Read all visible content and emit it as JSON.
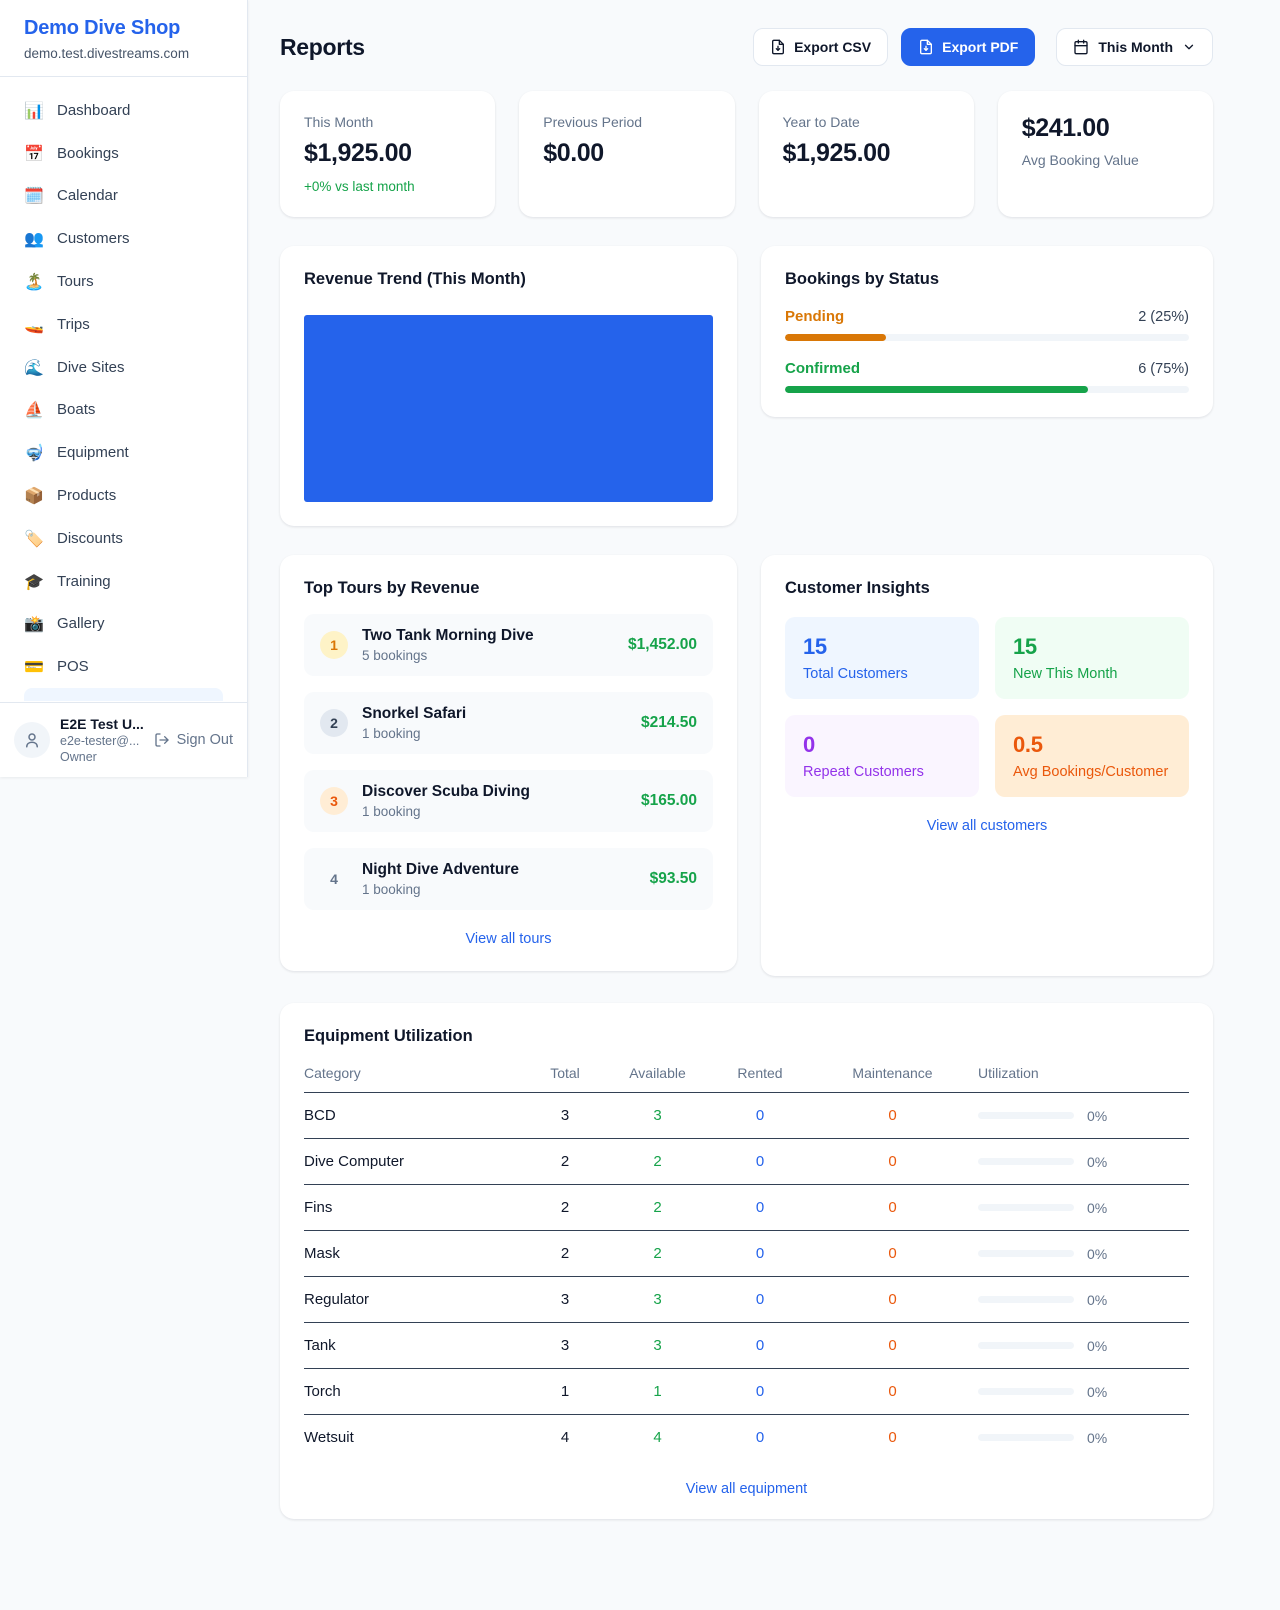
{
  "colors": {
    "accent_blue": "#2563eb",
    "success_green": "#16a34a",
    "pending_orange": "#d97706",
    "maintenance_orange": "#ea580c",
    "purple": "#9333ea",
    "page_bg": "#f8fafc",
    "chart_fill": "#2563eb"
  },
  "sidebar": {
    "brand": "Demo Dive Shop",
    "subdomain": "demo.test.divestreams.com",
    "items": [
      {
        "icon": "📊",
        "label": "Dashboard"
      },
      {
        "icon": "📅",
        "label": "Bookings"
      },
      {
        "icon": "🗓️",
        "label": "Calendar"
      },
      {
        "icon": "👥",
        "label": "Customers"
      },
      {
        "icon": "🏝️",
        "label": "Tours"
      },
      {
        "icon": "🚤",
        "label": "Trips"
      },
      {
        "icon": "🌊",
        "label": "Dive Sites"
      },
      {
        "icon": "⛵",
        "label": "Boats"
      },
      {
        "icon": "🤿",
        "label": "Equipment"
      },
      {
        "icon": "📦",
        "label": "Products"
      },
      {
        "icon": "🏷️",
        "label": "Discounts"
      },
      {
        "icon": "🎓",
        "label": "Training"
      },
      {
        "icon": "📸",
        "label": "Gallery"
      },
      {
        "icon": "💳",
        "label": "POS"
      }
    ],
    "user": {
      "name": "E2E Test U...",
      "email": "e2e-tester@...",
      "role": "Owner",
      "signout_label": "Sign Out"
    }
  },
  "header": {
    "title": "Reports",
    "export_csv_label": "Export CSV",
    "export_pdf_label": "Export PDF",
    "period_label": "This Month"
  },
  "stats": [
    {
      "label": "This Month",
      "value": "$1,925.00",
      "delta": "+0% vs last month"
    },
    {
      "label": "Previous Period",
      "value": "$0.00"
    },
    {
      "label": "Year to Date",
      "value": "$1,925.00"
    },
    {
      "label": "Avg Booking Value",
      "value": "$241.00"
    }
  ],
  "revenue_trend": {
    "title": "Revenue Trend (This Month)"
  },
  "chart_data": {
    "type": "bar",
    "title": "Revenue Trend (This Month)",
    "categories": [
      "This Month"
    ],
    "values": [
      1925
    ],
    "ylim": [
      0,
      1925
    ],
    "note": "single full-width solid blue bar, no axes or labels visible",
    "bar_color": "#2563eb"
  },
  "bookings_by_status": {
    "title": "Bookings by Status",
    "rows": [
      {
        "label": "Pending",
        "count": "2 (25%)",
        "pct": 25,
        "color": "#d97706"
      },
      {
        "label": "Confirmed",
        "count": "6 (75%)",
        "pct": 75,
        "color": "#16a34a"
      }
    ]
  },
  "top_tours": {
    "title": "Top Tours by Revenue",
    "rows": [
      {
        "rank": "1",
        "name": "Two Tank Morning Dive",
        "bookings": "5 bookings",
        "revenue": "$1,452.00"
      },
      {
        "rank": "2",
        "name": "Snorkel Safari",
        "bookings": "1 booking",
        "revenue": "$214.50"
      },
      {
        "rank": "3",
        "name": "Discover Scuba Diving",
        "bookings": "1 booking",
        "revenue": "$165.00"
      },
      {
        "rank": "4",
        "name": "Night Dive Adventure",
        "bookings": "1 booking",
        "revenue": "$93.50"
      }
    ],
    "link": "View all tours"
  },
  "customer_insights": {
    "title": "Customer Insights",
    "tiles": [
      {
        "value": "15",
        "label": "Total Customers"
      },
      {
        "value": "15",
        "label": "New This Month"
      },
      {
        "value": "0",
        "label": "Repeat Customers"
      },
      {
        "value": "0.5",
        "label": "Avg Bookings/Customer"
      }
    ],
    "link": "View all customers"
  },
  "equipment": {
    "title": "Equipment Utilization",
    "columns": [
      "Category",
      "Total",
      "Available",
      "Rented",
      "Maintenance",
      "Utilization"
    ],
    "rows": [
      {
        "category": "BCD",
        "total": "3",
        "available": "3",
        "rented": "0",
        "maintenance": "0",
        "utilization": "0%",
        "util_pct": 0
      },
      {
        "category": "Dive Computer",
        "total": "2",
        "available": "2",
        "rented": "0",
        "maintenance": "0",
        "utilization": "0%",
        "util_pct": 0
      },
      {
        "category": "Fins",
        "total": "2",
        "available": "2",
        "rented": "0",
        "maintenance": "0",
        "utilization": "0%",
        "util_pct": 0
      },
      {
        "category": "Mask",
        "total": "2",
        "available": "2",
        "rented": "0",
        "maintenance": "0",
        "utilization": "0%",
        "util_pct": 0
      },
      {
        "category": "Regulator",
        "total": "3",
        "available": "3",
        "rented": "0",
        "maintenance": "0",
        "utilization": "0%",
        "util_pct": 0
      },
      {
        "category": "Tank",
        "total": "3",
        "available": "3",
        "rented": "0",
        "maintenance": "0",
        "utilization": "0%",
        "util_pct": 0
      },
      {
        "category": "Torch",
        "total": "1",
        "available": "1",
        "rented": "0",
        "maintenance": "0",
        "utilization": "0%",
        "util_pct": 0
      },
      {
        "category": "Wetsuit",
        "total": "4",
        "available": "4",
        "rented": "0",
        "maintenance": "0",
        "utilization": "0%",
        "util_pct": 0
      }
    ],
    "link": "View all equipment"
  }
}
